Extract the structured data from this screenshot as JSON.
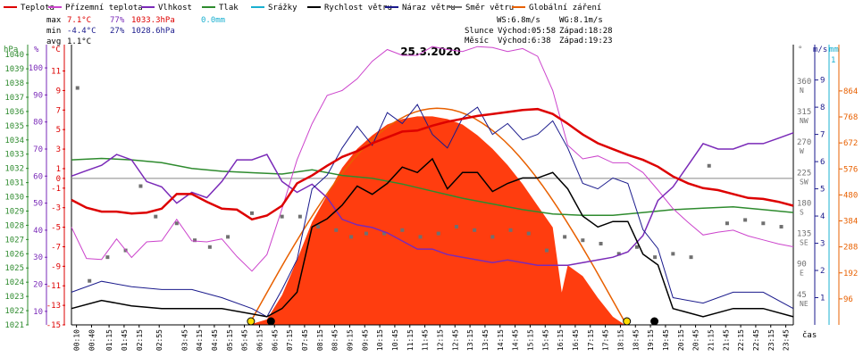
{
  "chart_data": {
    "type": "line",
    "title": "25.3.2020",
    "x_unit_label": "čas",
    "x_tick_labels": [
      "00:10",
      "00:40",
      "01:15",
      "01:45",
      "02:15",
      "02:55",
      "03:45",
      "04:15",
      "04:45",
      "05:15",
      "05:45",
      "06:15",
      "06:45",
      "07:15",
      "07:45",
      "08:15",
      "08:45",
      "09:15",
      "09:45",
      "10:15",
      "10:45",
      "11:15",
      "11:45",
      "12:15",
      "12:45",
      "13:15",
      "13:45",
      "14:15",
      "14:45",
      "15:15",
      "15:45",
      "16:15",
      "16:45",
      "17:15",
      "17:45",
      "18:15",
      "18:45",
      "19:15",
      "19:45",
      "20:15",
      "20:45",
      "21:15",
      "21:45",
      "22:15",
      "22:45",
      "23:15",
      "23:45"
    ],
    "x_ticks_hours": [
      0.167,
      0.667,
      1.25,
      1.75,
      2.25,
      2.917,
      3.75,
      4.25,
      4.75,
      5.25,
      5.75,
      6.25,
      6.75,
      7.25,
      7.75,
      8.25,
      8.75,
      9.25,
      9.75,
      10.25,
      10.75,
      11.25,
      11.75,
      12.25,
      12.75,
      13.25,
      13.75,
      14.25,
      14.75,
      15.25,
      15.75,
      16.25,
      16.75,
      17.25,
      17.75,
      18.25,
      18.75,
      19.25,
      19.75,
      20.25,
      20.75,
      21.25,
      21.75,
      22.25,
      22.75,
      23.25,
      23.75
    ],
    "xlim": [
      0,
      24
    ],
    "legend_position": "top",
    "legend": [
      {
        "key": "teplota",
        "label": "Teplota",
        "color": "#dd0000"
      },
      {
        "key": "pocit",
        "label": "Přízemní teplota",
        "color": "#cc44cc"
      },
      {
        "key": "vlhkost",
        "label": "Vlhkost",
        "color": "#7a2ab8"
      },
      {
        "key": "tlak",
        "label": "Tlak",
        "color": "#2e8b2e"
      },
      {
        "key": "srazky",
        "label": "Srážky",
        "color": "#1ab0d0"
      },
      {
        "key": "vitr",
        "label": "Rychlost větru",
        "color": "#000000"
      },
      {
        "key": "naraz",
        "label": "Náraz větru",
        "color": "#1a1a8c"
      },
      {
        "key": "smer",
        "label": "Směr větru",
        "color": "#707070"
      },
      {
        "key": "zareni",
        "label": "Globální záření",
        "color": "#e86000"
      }
    ],
    "stats": {
      "max": {
        "label": "max",
        "temp": "7.1°C",
        "hum": "77%",
        "press": "1033.3hPa",
        "rain": "0.0mm"
      },
      "min": {
        "label": "min",
        "temp": "-4.4°C",
        "hum": "27%",
        "press": "1028.6hPa"
      },
      "avg": {
        "label": "avg",
        "temp": "1.1°C"
      }
    },
    "wind_info": {
      "ws": "WS:6.8m/s",
      "wg": "WG:8.1m/s"
    },
    "sun": {
      "label": "Slunce",
      "rise": "Východ:05:58",
      "set": "Západ:18:28"
    },
    "moon": {
      "label": "Měsíc",
      "rise": "Východ:6:38",
      "set": "Západ:19:23"
    },
    "axes_left": {
      "pressure": {
        "unit": "hPa",
        "color": "#2e8b2e",
        "ticks": [
          "1040",
          "1039",
          "1038",
          "1037",
          "1036",
          "1035",
          "1034",
          "1033",
          "1032",
          "1031",
          "1030",
          "1029",
          "1028",
          "1027",
          "1026",
          "1025",
          "1024",
          "1023",
          "1022",
          "1021"
        ]
      },
      "humidity": {
        "unit": "%",
        "color": "#7a2ab8",
        "ticks": [
          "100",
          "90",
          "80",
          "70",
          "60",
          "50",
          "40",
          "30",
          "20",
          "10"
        ]
      },
      "temperature": {
        "unit": "°C",
        "color": "#dd0000",
        "ticks": [
          "11",
          "9",
          "7",
          "5",
          "3",
          "1",
          "0",
          "-1",
          "-3",
          "-5",
          "-7",
          "-9",
          "-11",
          "-13",
          "-15"
        ]
      }
    },
    "axes_right": {
      "direction": {
        "unit": "°",
        "color": "#707070",
        "ticks": [
          {
            "v": "360",
            "d": "N"
          },
          {
            "v": "315",
            "d": "NW"
          },
          {
            "v": "270",
            "d": "W"
          },
          {
            "v": "225",
            "d": "SW"
          },
          {
            "v": "180",
            "d": "S"
          },
          {
            "v": "135",
            "d": "SE"
          },
          {
            "v": "90",
            "d": "E"
          },
          {
            "v": "45",
            "d": "NE"
          }
        ]
      },
      "wind": {
        "unit": "m/s",
        "color": "#1a1a8c",
        "ticks": [
          "9",
          "8",
          "7",
          "6",
          "5",
          "4",
          "3",
          "2",
          "1"
        ]
      },
      "rain": {
        "unit": "mm",
        "color": "#1ab0d0",
        "ticks": [
          "1"
        ]
      },
      "radiation": {
        "unit": "",
        "color": "#e86000",
        "ticks": [
          "864",
          "768",
          "672",
          "576",
          "480",
          "384",
          "288",
          "192",
          "96"
        ]
      }
    },
    "series": [
      {
        "name": "Teplota",
        "key": "teplota",
        "unit": "°C",
        "x": [
          0,
          0.5,
          1,
          1.5,
          2,
          2.5,
          3,
          3.5,
          4,
          4.5,
          5,
          5.5,
          6,
          6.5,
          7,
          7.5,
          8,
          8.5,
          9,
          9.5,
          10,
          10.5,
          11,
          11.5,
          12,
          12.5,
          13,
          13.5,
          14,
          14.5,
          15,
          15.5,
          16,
          16.5,
          17,
          17.5,
          18,
          18.5,
          19,
          19.5,
          20,
          20.5,
          21,
          21.5,
          22,
          22.5,
          23,
          23.5,
          24
        ],
        "y": [
          -2.2,
          -3,
          -3.4,
          -3.4,
          -3.6,
          -3.5,
          -3.1,
          -1.6,
          -1.6,
          -2.4,
          -3.1,
          -3.2,
          -4.2,
          -3.8,
          -2.8,
          -0.5,
          0.3,
          1.3,
          2.2,
          2.8,
          3.6,
          4.2,
          4.8,
          4.9,
          5.4,
          5.8,
          6.1,
          6.4,
          6.6,
          6.8,
          7.0,
          7.1,
          6.6,
          5.6,
          4.5,
          3.6,
          3.0,
          2.4,
          1.9,
          1.2,
          0.2,
          -0.5,
          -1.0,
          -1.2,
          -1.6,
          -2.0,
          -2.1,
          -2.4,
          -2.8
        ]
      },
      {
        "name": "Přízemní teplota",
        "key": "pocit",
        "unit": "°C",
        "x": [
          0,
          0.5,
          1,
          1.5,
          2,
          2.5,
          3,
          3.5,
          4,
          4.5,
          5,
          5.5,
          6,
          6.5,
          7,
          7.5,
          8,
          8.5,
          9,
          9.5,
          10,
          10.5,
          11,
          11.5,
          12,
          12.5,
          13,
          13.5,
          14,
          14.5,
          15,
          15.5,
          16,
          16.5,
          17,
          17.5,
          18,
          18.5,
          19,
          19.5,
          20,
          20.5,
          21,
          21.5,
          22,
          22.5,
          23,
          23.5,
          24
        ],
        "y": [
          -5,
          -8.2,
          -8.3,
          -6.2,
          -8.1,
          -6.5,
          -6.4,
          -4.2,
          -6.4,
          -6.5,
          -6.2,
          -8.0,
          -9.5,
          -7.8,
          -3.1,
          1.9,
          5.6,
          8.5,
          9.0,
          10.2,
          12.0,
          13.2,
          12.6,
          12.6,
          13.5,
          13.2,
          13.0,
          13.5,
          13.4,
          13.0,
          13.3,
          12.5,
          9.0,
          3.4,
          2.0,
          2.3,
          1.6,
          1.6,
          0.6,
          -1.2,
          -3.1,
          -4.5,
          -5.8,
          -5.5,
          -5.3,
          -5.9,
          -6.3,
          -6.7,
          -7.0
        ]
      },
      {
        "name": "Vlhkost",
        "key": "vlhkost",
        "unit": "%",
        "x": [
          0,
          0.5,
          1,
          1.5,
          2,
          2.5,
          3,
          3.5,
          4,
          4.5,
          5,
          5.5,
          6,
          6.5,
          7,
          7.5,
          8,
          8.5,
          9,
          9.5,
          10,
          10.5,
          11,
          11.5,
          12,
          12.5,
          13,
          13.5,
          14,
          14.5,
          15,
          15.5,
          16,
          16.5,
          17,
          17.5,
          18,
          18.5,
          19,
          19.5,
          20,
          20.5,
          21,
          21.5,
          22,
          22.5,
          23,
          23.5,
          24
        ],
        "y": [
          60,
          62,
          64,
          68,
          66,
          58,
          56,
          50,
          54,
          52,
          58,
          66,
          66,
          68,
          58,
          54,
          57,
          52,
          44,
          42,
          41,
          39,
          36,
          33,
          33,
          31,
          30,
          29,
          28,
          29,
          28,
          27,
          27,
          27,
          28,
          29,
          30,
          32,
          38,
          51,
          56,
          64,
          72,
          70,
          70,
          72,
          72,
          74,
          76
        ]
      },
      {
        "name": "Tlak",
        "key": "tlak",
        "unit": "hPa",
        "x": [
          0,
          1,
          2,
          3,
          4,
          5,
          6,
          7,
          8,
          9,
          10,
          11,
          12,
          13,
          14,
          15,
          16,
          17,
          18,
          19,
          20,
          21,
          22,
          23,
          24
        ],
        "y": [
          1032.6,
          1032.7,
          1032.6,
          1032.4,
          1032.0,
          1031.8,
          1031.7,
          1031.6,
          1031.9,
          1031.5,
          1031.3,
          1030.9,
          1030.4,
          1029.9,
          1029.5,
          1029.1,
          1028.8,
          1028.7,
          1028.7,
          1028.9,
          1029.1,
          1029.2,
          1029.3,
          1029.1,
          1028.9
        ]
      },
      {
        "name": "Rychlost větru",
        "key": "vitr",
        "unit": "m/s",
        "x": [
          0,
          1,
          2,
          3,
          4,
          5,
          6,
          6.5,
          7,
          7.5,
          8,
          8.5,
          9,
          9.5,
          10,
          10.5,
          11,
          11.5,
          12,
          12.5,
          13,
          13.5,
          14,
          14.5,
          15,
          15.5,
          16,
          16.5,
          17,
          17.5,
          18,
          18.5,
          19,
          19.5,
          20,
          21,
          22,
          23,
          24
        ],
        "y": [
          0.6,
          0.9,
          0.7,
          0.6,
          0.6,
          0.6,
          0.4,
          0.3,
          0.6,
          1.2,
          3.6,
          3.9,
          4.4,
          5.1,
          4.8,
          5.2,
          5.8,
          5.6,
          6.1,
          5.0,
          5.6,
          5.6,
          4.9,
          5.2,
          5.4,
          5.4,
          5.6,
          5.0,
          4.0,
          3.6,
          3.8,
          3.8,
          2.6,
          2.2,
          0.6,
          0.3,
          0.6,
          0.6,
          0.3
        ]
      },
      {
        "name": "Náraz větru",
        "key": "naraz",
        "unit": "m/s",
        "x": [
          0,
          1,
          2,
          3,
          4,
          5,
          6,
          6.5,
          7,
          7.5,
          8,
          8.5,
          9,
          9.5,
          10,
          10.5,
          11,
          11.5,
          12,
          12.5,
          13,
          13.5,
          14,
          14.5,
          15,
          15.5,
          16,
          16.5,
          17,
          17.5,
          18,
          18.5,
          19,
          19.5,
          20,
          21,
          22,
          23,
          24
        ],
        "y": [
          1.2,
          1.6,
          1.4,
          1.3,
          1.3,
          1.0,
          0.6,
          0.3,
          1.3,
          2.4,
          5.0,
          5.5,
          6.5,
          7.3,
          6.6,
          7.8,
          7.4,
          8.1,
          7.0,
          6.5,
          7.6,
          8.0,
          7.0,
          7.4,
          6.8,
          7.0,
          7.5,
          6.5,
          5.2,
          5.0,
          5.4,
          5.2,
          3.5,
          2.8,
          1.0,
          0.8,
          1.2,
          1.2,
          0.6
        ]
      },
      {
        "name": "Směr větru",
        "key": "smer",
        "unit": "°",
        "x": [
          0.2,
          0.6,
          1.2,
          1.8,
          2.3,
          2.8,
          3.5,
          4.1,
          4.6,
          5.2,
          6.0,
          7.0,
          7.6,
          8.2,
          8.8,
          9.3,
          9.8,
          10.4,
          11.0,
          11.6,
          12.2,
          12.8,
          13.4,
          14.0,
          14.6,
          15.2,
          15.8,
          16.4,
          17.0,
          17.6,
          18.2,
          18.8,
          19.4,
          20.0,
          20.6,
          21.2,
          21.8,
          22.4,
          23.0,
          23.6
        ],
        "y": [
          350,
          65,
          100,
          110,
          205,
          160,
          150,
          125,
          115,
          130,
          165,
          160,
          160,
          145,
          140,
          130,
          135,
          135,
          140,
          130,
          135,
          145,
          140,
          130,
          140,
          135,
          110,
          130,
          125,
          120,
          105,
          115,
          100,
          105,
          100,
          235,
          150,
          155,
          150,
          145
        ]
      },
      {
        "name": "Globální záření",
        "key": "zareni",
        "unit": "W/m²",
        "x": [
          5.9,
          6.5,
          7,
          7.5,
          8,
          8.5,
          9,
          9.5,
          10,
          10.5,
          11,
          11.5,
          12,
          12.5,
          13,
          13.5,
          14,
          14.5,
          15,
          15.5,
          16,
          16.3,
          16.5,
          17,
          17.5,
          18,
          18.4
        ],
        "y": [
          0,
          20,
          110,
          240,
          380,
          480,
          580,
          650,
          700,
          740,
          760,
          770,
          770,
          760,
          740,
          700,
          650,
          590,
          520,
          440,
          360,
          120,
          220,
          180,
          100,
          30,
          0
        ]
      },
      {
        "name": "Srážky",
        "key": "srazky",
        "unit": "mm",
        "x": [
          0,
          24
        ],
        "y": [
          0,
          0
        ]
      }
    ]
  }
}
